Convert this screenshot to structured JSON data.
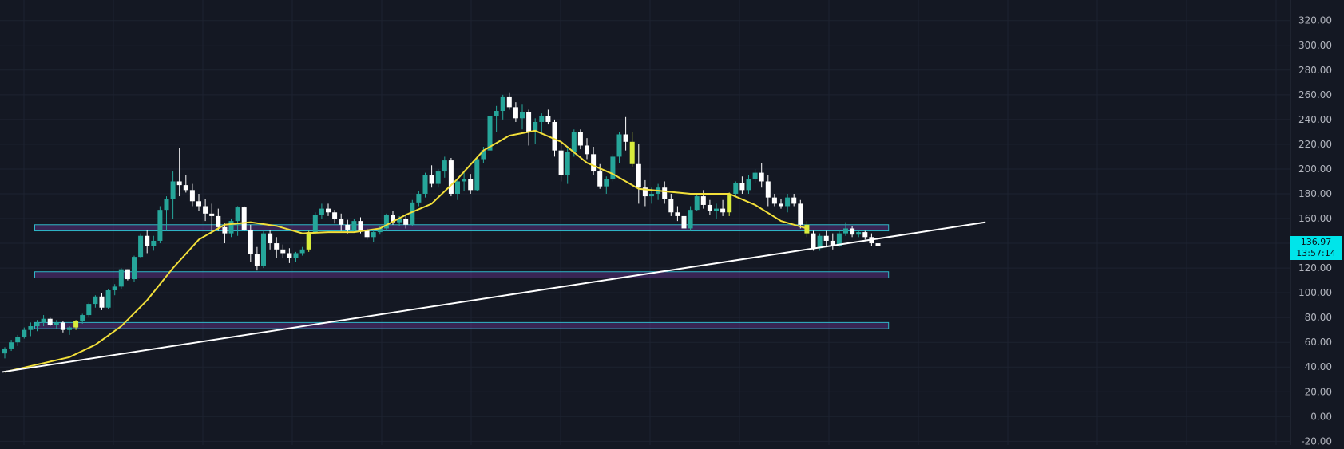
{
  "chart_data": {
    "type": "candlestick",
    "yaxis": {
      "ticks": [
        "320.00",
        "300.00",
        "280.00",
        "260.00",
        "240.00",
        "220.00",
        "200.00",
        "180.00",
        "160.00",
        "140.00",
        "120.00",
        "100.00",
        "80.00",
        "60.00",
        "40.00",
        "20.00",
        "0.00",
        "-20.00"
      ],
      "ylim": [
        -23,
        334
      ],
      "side": "right"
    },
    "grid": true,
    "last_price": {
      "value": "136.97",
      "countdown": "13:57:14"
    },
    "colors": {
      "background": "#141823",
      "grid": "#1d2230",
      "up": "#26a69a",
      "down": "#ffffff",
      "highlight": "#d8ec3c",
      "ma": "#f2df3a",
      "trendline": "#ffffff",
      "zone_border": "#2fb8c8",
      "zone_fill": "#7b3fb3",
      "price_tag": "#00e5ea"
    },
    "zones": [
      {
        "low": 150,
        "high": 155,
        "from_candle": 5,
        "to_candle": 137
      },
      {
        "low": 112,
        "high": 117,
        "from_candle": 5,
        "to_candle": 137
      },
      {
        "low": 71,
        "high": 76,
        "from_candle": 5,
        "to_candle": 137
      }
    ],
    "trendline": {
      "start": {
        "candle": 0,
        "value": 36
      },
      "end": {
        "candle": 152,
        "value": 157
      }
    },
    "moving_average": [
      [
        0,
        36
      ],
      [
        10,
        48
      ],
      [
        14,
        58
      ],
      [
        18,
        73
      ],
      [
        22,
        94
      ],
      [
        26,
        120
      ],
      [
        30,
        143
      ],
      [
        34,
        155
      ],
      [
        38,
        157
      ],
      [
        42,
        154
      ],
      [
        46,
        148
      ],
      [
        50,
        149
      ],
      [
        54,
        149
      ],
      [
        58,
        152
      ],
      [
        62,
        163
      ],
      [
        66,
        172
      ],
      [
        70,
        192
      ],
      [
        74,
        215
      ],
      [
        78,
        227
      ],
      [
        82,
        231
      ],
      [
        86,
        222
      ],
      [
        90,
        205
      ],
      [
        94,
        196
      ],
      [
        98,
        184
      ],
      [
        102,
        182
      ],
      [
        106,
        180
      ],
      [
        112,
        180
      ],
      [
        116,
        171
      ],
      [
        120,
        158
      ],
      [
        124,
        152
      ]
    ],
    "candles": [
      [
        51,
        56,
        47,
        55
      ],
      [
        55,
        62,
        53,
        60
      ],
      [
        60,
        66,
        57,
        64
      ],
      [
        64,
        72,
        63,
        70
      ],
      [
        70,
        76,
        65,
        73
      ],
      [
        73,
        78,
        69,
        76
      ],
      [
        76,
        82,
        73,
        79
      ],
      [
        79,
        80,
        73,
        74
      ],
      [
        74,
        78,
        71,
        76
      ],
      [
        76,
        77,
        68,
        70
      ],
      [
        70,
        73,
        66,
        72
      ],
      [
        72,
        78,
        70,
        77
      ],
      [
        77,
        83,
        75,
        82
      ],
      [
        82,
        92,
        80,
        91
      ],
      [
        91,
        98,
        88,
        97
      ],
      [
        97,
        100,
        86,
        88
      ],
      [
        88,
        103,
        87,
        102
      ],
      [
        102,
        107,
        98,
        105
      ],
      [
        105,
        120,
        103,
        119
      ],
      [
        119,
        119,
        110,
        111
      ],
      [
        111,
        130,
        109,
        129
      ],
      [
        129,
        148,
        128,
        146
      ],
      [
        146,
        151,
        132,
        138
      ],
      [
        138,
        146,
        134,
        142
      ],
      [
        142,
        170,
        140,
        167
      ],
      [
        167,
        178,
        150,
        176
      ],
      [
        176,
        198,
        160,
        190
      ],
      [
        190,
        217,
        178,
        187
      ],
      [
        187,
        195,
        181,
        183
      ],
      [
        183,
        188,
        170,
        174
      ],
      [
        174,
        180,
        166,
        170
      ],
      [
        170,
        176,
        158,
        164
      ],
      [
        164,
        172,
        148,
        162
      ],
      [
        162,
        168,
        150,
        153
      ],
      [
        153,
        156,
        140,
        148
      ],
      [
        148,
        160,
        145,
        158
      ],
      [
        158,
        170,
        146,
        169
      ],
      [
        169,
        170,
        150,
        151
      ],
      [
        151,
        155,
        125,
        131
      ],
      [
        131,
        137,
        118,
        122
      ],
      [
        122,
        150,
        120,
        148
      ],
      [
        148,
        151,
        135,
        140
      ],
      [
        140,
        145,
        128,
        135
      ],
      [
        135,
        139,
        128,
        132
      ],
      [
        132,
        136,
        124,
        128
      ],
      [
        128,
        133,
        125,
        132
      ],
      [
        132,
        137,
        130,
        135
      ],
      [
        135,
        150,
        133,
        149
      ],
      [
        149,
        165,
        147,
        163
      ],
      [
        163,
        172,
        160,
        168
      ],
      [
        168,
        172,
        162,
        165
      ],
      [
        165,
        167,
        156,
        160
      ],
      [
        160,
        164,
        150,
        155
      ],
      [
        155,
        159,
        148,
        151
      ],
      [
        151,
        160,
        149,
        158
      ],
      [
        158,
        161,
        148,
        150
      ],
      [
        150,
        152,
        143,
        145
      ],
      [
        145,
        151,
        141,
        149
      ],
      [
        149,
        154,
        147,
        152
      ],
      [
        152,
        164,
        150,
        163
      ],
      [
        163,
        166,
        155,
        157
      ],
      [
        157,
        162,
        154,
        160
      ],
      [
        160,
        163,
        152,
        155
      ],
      [
        155,
        175,
        154,
        173
      ],
      [
        173,
        182,
        170,
        180
      ],
      [
        180,
        197,
        177,
        195
      ],
      [
        195,
        203,
        185,
        188
      ],
      [
        188,
        200,
        185,
        198
      ],
      [
        198,
        210,
        193,
        207
      ],
      [
        207,
        209,
        178,
        180
      ],
      [
        180,
        192,
        175,
        190
      ],
      [
        190,
        198,
        182,
        192
      ],
      [
        192,
        196,
        180,
        183
      ],
      [
        183,
        210,
        182,
        208
      ],
      [
        208,
        218,
        205,
        215
      ],
      [
        215,
        245,
        213,
        243
      ],
      [
        243,
        251,
        230,
        247
      ],
      [
        247,
        260,
        240,
        258
      ],
      [
        258,
        262,
        248,
        250
      ],
      [
        250,
        254,
        238,
        241
      ],
      [
        241,
        252,
        232,
        246
      ],
      [
        246,
        248,
        219,
        230
      ],
      [
        230,
        241,
        220,
        238
      ],
      [
        238,
        245,
        228,
        243
      ],
      [
        243,
        248,
        236,
        238
      ],
      [
        238,
        240,
        210,
        215
      ],
      [
        215,
        222,
        190,
        195
      ],
      [
        195,
        218,
        188,
        214
      ],
      [
        214,
        232,
        210,
        230
      ],
      [
        230,
        232,
        216,
        219
      ],
      [
        219,
        225,
        208,
        212
      ],
      [
        212,
        218,
        195,
        198
      ],
      [
        198,
        204,
        184,
        186
      ],
      [
        186,
        194,
        180,
        192
      ],
      [
        192,
        212,
        190,
        210
      ],
      [
        210,
        230,
        205,
        228
      ],
      [
        228,
        242,
        215,
        222
      ],
      [
        222,
        230,
        202,
        204
      ],
      [
        204,
        220,
        172,
        185
      ],
      [
        185,
        191,
        170,
        178
      ],
      [
        178,
        185,
        172,
        180
      ],
      [
        180,
        188,
        175,
        185
      ],
      [
        185,
        190,
        172,
        176
      ],
      [
        176,
        180,
        162,
        165
      ],
      [
        165,
        170,
        158,
        162
      ],
      [
        162,
        164,
        148,
        152
      ],
      [
        152,
        170,
        150,
        167
      ],
      [
        167,
        180,
        166,
        178
      ],
      [
        178,
        183,
        168,
        171
      ],
      [
        171,
        175,
        163,
        166
      ],
      [
        166,
        172,
        160,
        168
      ],
      [
        168,
        175,
        162,
        165
      ],
      [
        165,
        181,
        162,
        180
      ],
      [
        180,
        190,
        178,
        189
      ],
      [
        189,
        194,
        180,
        183
      ],
      [
        183,
        195,
        180,
        192
      ],
      [
        192,
        200,
        189,
        197
      ],
      [
        197,
        205,
        185,
        190
      ],
      [
        190,
        195,
        170,
        177
      ],
      [
        177,
        180,
        170,
        172
      ],
      [
        172,
        176,
        168,
        170
      ],
      [
        170,
        180,
        165,
        177
      ],
      [
        177,
        180,
        170,
        172
      ],
      [
        172,
        175,
        152,
        155
      ],
      [
        155,
        158,
        145,
        148
      ],
      [
        148,
        150,
        134,
        136
      ],
      [
        136,
        148,
        134,
        146
      ],
      [
        146,
        150,
        138,
        142
      ],
      [
        142,
        148,
        135,
        138
      ],
      [
        138,
        150,
        137,
        148
      ],
      [
        148,
        157,
        146,
        152
      ],
      [
        152,
        154,
        145,
        147
      ],
      [
        147,
        150,
        145,
        149
      ],
      [
        149,
        150,
        143,
        145
      ],
      [
        145,
        148,
        138,
        140
      ],
      [
        140,
        142,
        136,
        138
      ]
    ],
    "highlight_candles": [
      11,
      47,
      97,
      112,
      124
    ]
  }
}
